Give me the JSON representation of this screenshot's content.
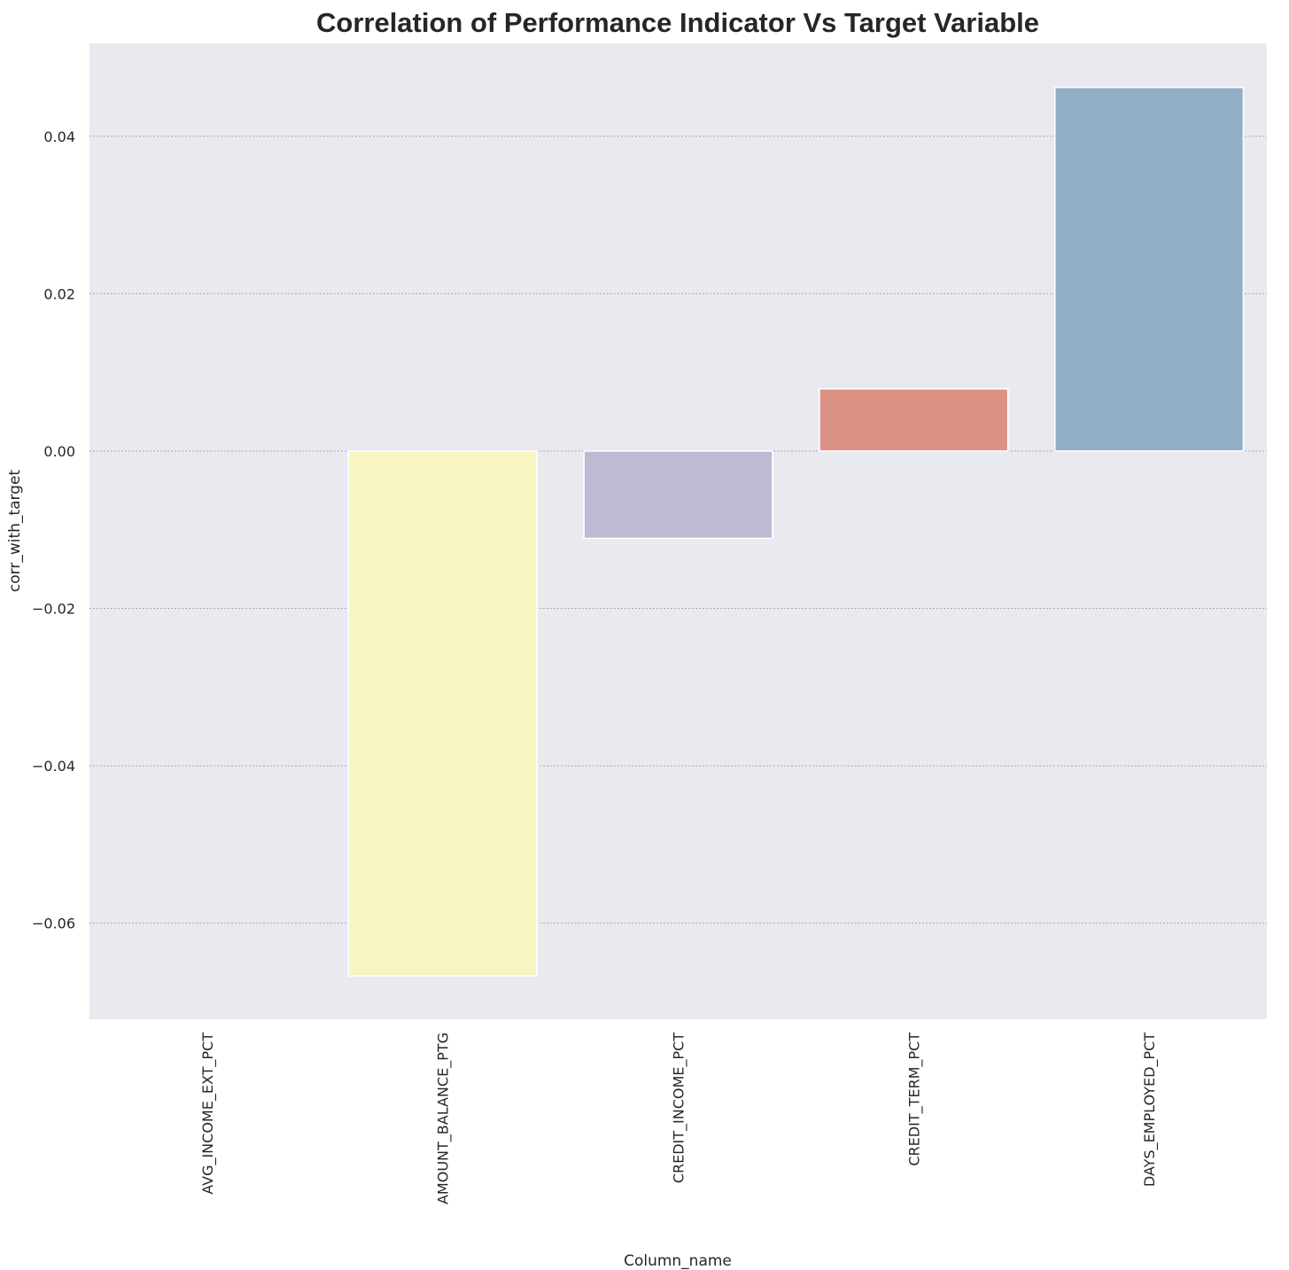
{
  "chart_data": {
    "type": "bar",
    "title": "Correlation of Performance Indicator Vs Target Variable",
    "xlabel": "Column_name",
    "ylabel": "corr_with_target",
    "categories": [
      "AVG_INCOME_EXT_PCT",
      "AMOUNT_BALANCE_PTG",
      "CREDIT_INCOME_PCT",
      "CREDIT_TERM_PCT",
      "DAYS_EMPLOYED_PCT"
    ],
    "values": [
      0.0,
      -0.0667,
      -0.0111,
      0.0079,
      0.0462
    ],
    "colors": [
      "#8dd3c7",
      "#f7f5c0",
      "#bebad4",
      "#dc9185",
      "#92aec6"
    ],
    "ylim": [
      -0.0722,
      0.0518
    ],
    "yticks": [
      -0.06,
      -0.04,
      -0.02,
      0.0,
      0.02,
      0.04
    ],
    "ytick_labels": [
      "−0.06",
      "−0.04",
      "−0.02",
      "0.00",
      "0.02",
      "0.04"
    ],
    "grid": "horizontal",
    "background": "#e9eaf0"
  }
}
